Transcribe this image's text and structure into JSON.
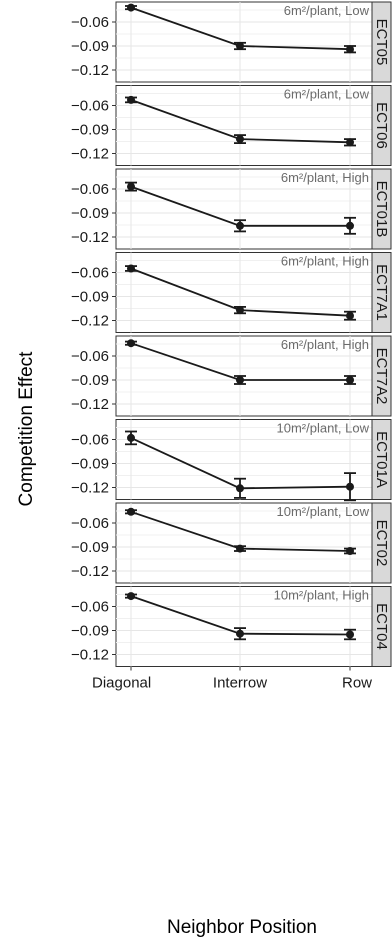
{
  "chart_data": {
    "type": "line",
    "xlabel": "Neighbor Position",
    "ylabel": "Competition Effect",
    "categories": [
      "Diagonal",
      "Interrow",
      "Row"
    ],
    "ylim": [
      -0.135,
      -0.035
    ],
    "yticks": [
      -0.06,
      -0.09,
      -0.12
    ],
    "ytick_labels": [
      "−0.06",
      "−0.09",
      "−0.12"
    ],
    "grid": true,
    "facets": [
      {
        "label": "ECT05",
        "annotation": "6m²/plant, Low",
        "values": [
          -0.042,
          -0.09,
          -0.094
        ],
        "lower": [
          -0.044,
          -0.094,
          -0.098
        ],
        "upper": [
          -0.04,
          -0.086,
          -0.09
        ]
      },
      {
        "label": "ECT06",
        "annotation": "6m²/plant, Low",
        "values": [
          -0.053,
          -0.102,
          -0.106
        ],
        "lower": [
          -0.056,
          -0.107,
          -0.11
        ],
        "upper": [
          -0.05,
          -0.097,
          -0.102
        ]
      },
      {
        "label": "ECT01B",
        "annotation": "6m²/plant, High",
        "values": [
          -0.057,
          -0.106,
          -0.106
        ],
        "lower": [
          -0.062,
          -0.113,
          -0.116
        ],
        "upper": [
          -0.052,
          -0.099,
          -0.096
        ]
      },
      {
        "label": "ECT7A1",
        "annotation": "6m²/plant, High",
        "values": [
          -0.055,
          -0.107,
          -0.114
        ],
        "lower": [
          -0.058,
          -0.111,
          -0.119
        ],
        "upper": [
          -0.052,
          -0.103,
          -0.109
        ]
      },
      {
        "label": "ECT7A2",
        "annotation": "6m²/plant, High",
        "values": [
          -0.044,
          -0.09,
          -0.09
        ],
        "lower": [
          -0.046,
          -0.095,
          -0.095
        ],
        "upper": [
          -0.042,
          -0.085,
          -0.085
        ]
      },
      {
        "label": "ECT01A",
        "annotation": "10m²/plant, Low",
        "values": [
          -0.058,
          -0.121,
          -0.119
        ],
        "lower": [
          -0.066,
          -0.133,
          -0.136
        ],
        "upper": [
          -0.05,
          -0.109,
          -0.102
        ]
      },
      {
        "label": "ECT02",
        "annotation": "10m²/plant, Low",
        "values": [
          -0.046,
          -0.092,
          -0.095
        ],
        "lower": [
          -0.048,
          -0.095,
          -0.098
        ],
        "upper": [
          -0.044,
          -0.089,
          -0.092
        ]
      },
      {
        "label": "ECT04",
        "annotation": "10m²/plant, High",
        "values": [
          -0.047,
          -0.094,
          -0.095
        ],
        "lower": [
          -0.049,
          -0.101,
          -0.101
        ],
        "upper": [
          -0.045,
          -0.087,
          -0.089
        ]
      }
    ]
  }
}
